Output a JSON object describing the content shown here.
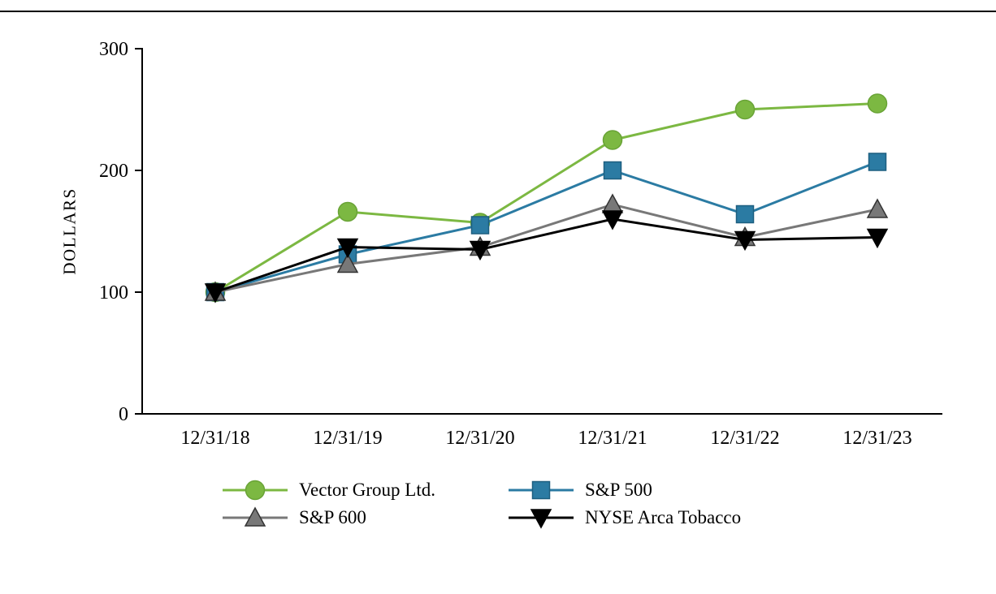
{
  "chart_data": {
    "type": "line",
    "title": "",
    "xlabel": "",
    "ylabel": "DOLLARS",
    "ylim": [
      0,
      300
    ],
    "yticks": [
      0,
      100,
      200,
      300
    ],
    "grid": false,
    "legend_position": "bottom",
    "categories": [
      "12/31/18",
      "12/31/19",
      "12/31/20",
      "12/31/21",
      "12/31/22",
      "12/31/23"
    ],
    "series": [
      {
        "name": "Vector Group Ltd.",
        "marker": "circle",
        "color": "#7cb842",
        "edge": "#69a336",
        "values": [
          100,
          166,
          157,
          225,
          250,
          255
        ]
      },
      {
        "name": "S&P 500",
        "marker": "square",
        "color": "#2b7ba3",
        "edge": "#1d5f80",
        "values": [
          100,
          131,
          155,
          200,
          164,
          207
        ]
      },
      {
        "name": "S&P 600",
        "marker": "triangle-up",
        "color": "#787878",
        "edge": "#333333",
        "values": [
          100,
          123,
          137,
          172,
          145,
          168
        ]
      },
      {
        "name": "NYSE Arca Tobacco",
        "marker": "triangle-down",
        "color": "#000000",
        "edge": "#000000",
        "values": [
          100,
          137,
          135,
          160,
          143,
          145
        ]
      }
    ]
  }
}
